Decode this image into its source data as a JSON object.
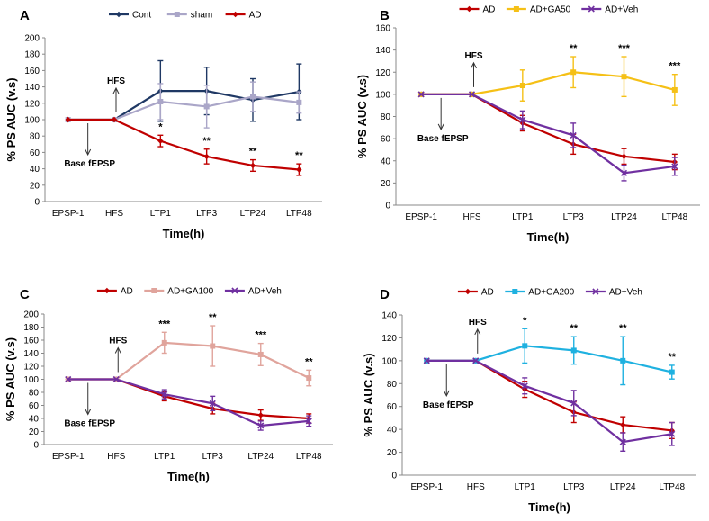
{
  "chart_data": [
    {
      "type": "line",
      "panel": "A",
      "categories": [
        "EPSP-1",
        "HFS",
        "LTP1",
        "LTP3",
        "LTP24",
        "LTP48"
      ],
      "ylabel": "% PS AUC (v.s)",
      "xlabel": "Time(h)",
      "ylim": [
        0,
        200
      ],
      "yticks": [
        0,
        20,
        40,
        60,
        80,
        100,
        120,
        140,
        160,
        180,
        200
      ],
      "legend_placement": "top",
      "series": [
        {
          "name": "Cont",
          "color": "#1f3864",
          "values": [
            100,
            100,
            135,
            135,
            124,
            134
          ],
          "errors": [
            0,
            0,
            37,
            29,
            26,
            34
          ]
        },
        {
          "name": "sham",
          "color": "#aaa6c8",
          "values": [
            100,
            100,
            122,
            116,
            128,
            121
          ],
          "errors": [
            0,
            0,
            22,
            26,
            18,
            13
          ]
        },
        {
          "name": "AD",
          "color": "#c00000",
          "values": [
            100,
            100,
            74,
            55,
            44,
            39
          ],
          "errors": [
            0,
            0,
            7,
            9,
            7,
            7
          ]
        }
      ],
      "significance": [
        {
          "index": 2,
          "label": "*"
        },
        {
          "index": 3,
          "label": "**"
        },
        {
          "index": 4,
          "label": "**"
        },
        {
          "index": 5,
          "label": "**"
        }
      ],
      "annotations": [
        {
          "text": "HFS",
          "arrow": "up",
          "index": 1
        },
        {
          "text": "Base fEPSP",
          "arrow": "down",
          "index": 0
        }
      ]
    },
    {
      "type": "line",
      "panel": "B",
      "categories": [
        "EPSP-1",
        "HFS",
        "LTP1",
        "LTP3",
        "LTP24",
        "LTP48"
      ],
      "ylabel": "% PS AUC (v.s)",
      "xlabel": "Time(h)",
      "ylim": [
        0,
        160
      ],
      "yticks": [
        0,
        20,
        40,
        60,
        80,
        100,
        120,
        140,
        160
      ],
      "legend_placement": "top",
      "series": [
        {
          "name": "AD",
          "color": "#c00000",
          "values": [
            100,
            100,
            74,
            55,
            44,
            39
          ],
          "errors": [
            0,
            0,
            7,
            9,
            7,
            7
          ]
        },
        {
          "name": "AD+GA50",
          "color": "#f5c016",
          "values": [
            100,
            100,
            108,
            120,
            116,
            104
          ],
          "errors": [
            0,
            0,
            14,
            14,
            18,
            14
          ]
        },
        {
          "name": "AD+Veh",
          "color": "#7030a0",
          "values": [
            100,
            100,
            77,
            63,
            29,
            35
          ],
          "errors": [
            0,
            0,
            8,
            11,
            7,
            8
          ]
        }
      ],
      "significance": [
        {
          "index": 3,
          "label": "**"
        },
        {
          "index": 4,
          "label": "***"
        },
        {
          "index": 5,
          "label": "***"
        }
      ],
      "annotations": [
        {
          "text": "HFS",
          "arrow": "up",
          "index": 1
        },
        {
          "text": "Base fEPSP",
          "arrow": "down",
          "index": 0
        }
      ]
    },
    {
      "type": "line",
      "panel": "C",
      "categories": [
        "EPSP-1",
        "HFS",
        "LTP1",
        "LTP3",
        "LTP24",
        "LTP48"
      ],
      "ylabel": "% PS AUC (v.s)",
      "xlabel": "Time(h)",
      "ylim": [
        0,
        200
      ],
      "yticks": [
        0,
        20,
        40,
        60,
        80,
        100,
        120,
        140,
        160,
        180,
        200
      ],
      "legend_placement": "top",
      "series": [
        {
          "name": "AD",
          "color": "#c00000",
          "values": [
            100,
            100,
            74,
            55,
            45,
            40
          ],
          "errors": [
            0,
            0,
            7,
            8,
            8,
            7
          ]
        },
        {
          "name": "AD+GA100",
          "color": "#e0a49c",
          "values": [
            100,
            100,
            156,
            151,
            138,
            102
          ],
          "errors": [
            0,
            0,
            16,
            31,
            17,
            12
          ]
        },
        {
          "name": "AD+Veh",
          "color": "#7030a0",
          "values": [
            100,
            100,
            77,
            63,
            29,
            36
          ],
          "errors": [
            0,
            0,
            7,
            11,
            7,
            8
          ]
        }
      ],
      "significance": [
        {
          "index": 2,
          "label": "***"
        },
        {
          "index": 3,
          "label": "**"
        },
        {
          "index": 4,
          "label": "***"
        },
        {
          "index": 5,
          "label": "**"
        }
      ],
      "annotations": [
        {
          "text": "HFS",
          "arrow": "up",
          "index": 1
        },
        {
          "text": "Base fEPSP",
          "arrow": "down",
          "index": 0
        }
      ]
    },
    {
      "type": "line",
      "panel": "D",
      "categories": [
        "EPSP-1",
        "HFS",
        "LTP1",
        "LTP3",
        "LTP24",
        "LTP48"
      ],
      "ylabel": "% PS AUC (v.s)",
      "xlabel": "Time(h)",
      "ylim": [
        0,
        140
      ],
      "yticks": [
        0,
        20,
        40,
        60,
        80,
        100,
        120,
        140
      ],
      "legend_placement": "top",
      "series": [
        {
          "name": "AD",
          "color": "#c00000",
          "values": [
            100,
            100,
            75,
            55,
            44,
            39
          ],
          "errors": [
            0,
            0,
            7,
            9,
            7,
            7
          ]
        },
        {
          "name": "AD+GA200",
          "color": "#1fb1e0",
          "values": [
            100,
            100,
            113,
            109,
            100,
            90
          ],
          "errors": [
            0,
            0,
            15,
            12,
            21,
            6
          ]
        },
        {
          "name": "AD+Veh",
          "color": "#7030a0",
          "values": [
            100,
            100,
            78,
            63,
            29,
            36
          ],
          "errors": [
            0,
            0,
            7,
            11,
            8,
            10
          ]
        }
      ],
      "significance": [
        {
          "index": 2,
          "label": "*"
        },
        {
          "index": 3,
          "label": "**"
        },
        {
          "index": 4,
          "label": "**"
        },
        {
          "index": 5,
          "label": "**"
        }
      ],
      "annotations": [
        {
          "text": "HFS",
          "arrow": "up",
          "index": 1
        },
        {
          "text": "Base fEPSP",
          "arrow": "down",
          "index": 0
        }
      ]
    }
  ]
}
